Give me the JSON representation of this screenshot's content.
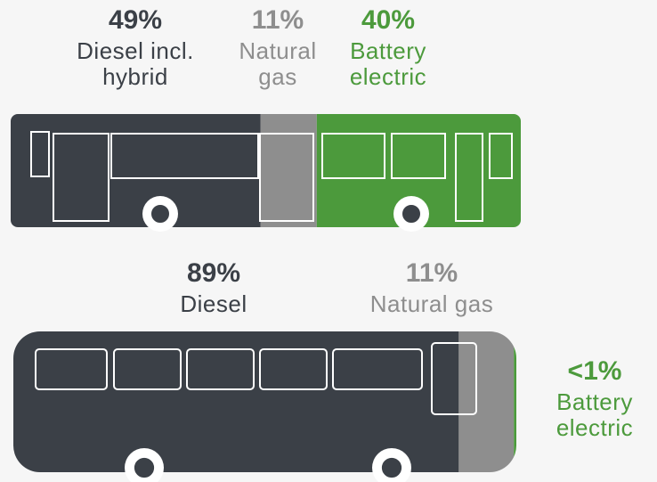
{
  "chart_data": [
    {
      "type": "bus",
      "categories": [
        "Diesel incl. hybrid",
        "Natural gas",
        "Battery electric"
      ],
      "values": [
        49,
        11,
        40
      ],
      "value_labels": [
        "49%",
        "11%",
        "40%"
      ],
      "colors": [
        "#3b4047",
        "#8e8e8e",
        "#4c9a3c"
      ]
    },
    {
      "type": "bus",
      "categories": [
        "Diesel",
        "Natural gas",
        "Battery electric"
      ],
      "values": [
        89,
        11,
        0.5
      ],
      "value_labels": [
        "89%",
        "11%",
        "<1%"
      ],
      "colors": [
        "#3b4047",
        "#8e8e8e",
        "#4c9a3c"
      ]
    }
  ]
}
